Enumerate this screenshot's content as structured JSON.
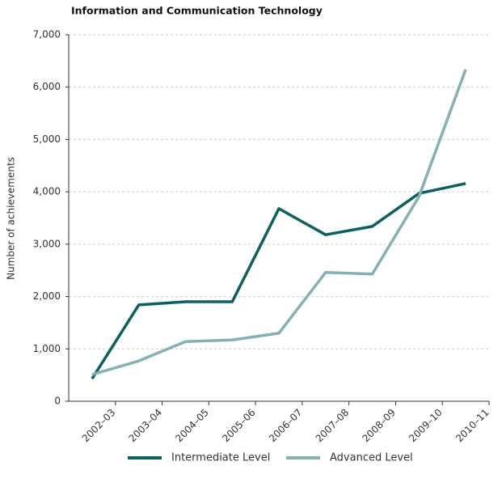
{
  "chart_data": {
    "type": "line",
    "title": "Information and Communication Technology",
    "ylabel": "Number of achievements",
    "categories": [
      "2002–03",
      "2003–04",
      "2004–05",
      "2005–06",
      "2006–07",
      "2007–08",
      "2008–09",
      "2009–10",
      "2010–11"
    ],
    "series": [
      {
        "name": "Intermediate Level",
        "color": "#0e5f60",
        "values": [
          430,
          1840,
          1900,
          1900,
          3680,
          3180,
          3340,
          3970,
          4160
        ]
      },
      {
        "name": "Advanced Level",
        "color": "#85b1b3",
        "values": [
          510,
          770,
          1140,
          1170,
          1300,
          2460,
          2430,
          3910,
          6340
        ]
      }
    ],
    "ylim": [
      0,
      7000
    ],
    "yticks": [
      0,
      {
        "value": 1000,
        "label": "1,000"
      },
      {
        "value": 2000,
        "label": "2,000"
      },
      {
        "value": 3000,
        "label": "3,000"
      },
      {
        "value": 4000,
        "label": "4,000"
      },
      {
        "value": 5000,
        "label": "5,000"
      },
      {
        "value": 6000,
        "label": "6,000"
      },
      {
        "value": 7000,
        "label": "7,000"
      }
    ],
    "grid": true,
    "legend": "bottom"
  }
}
